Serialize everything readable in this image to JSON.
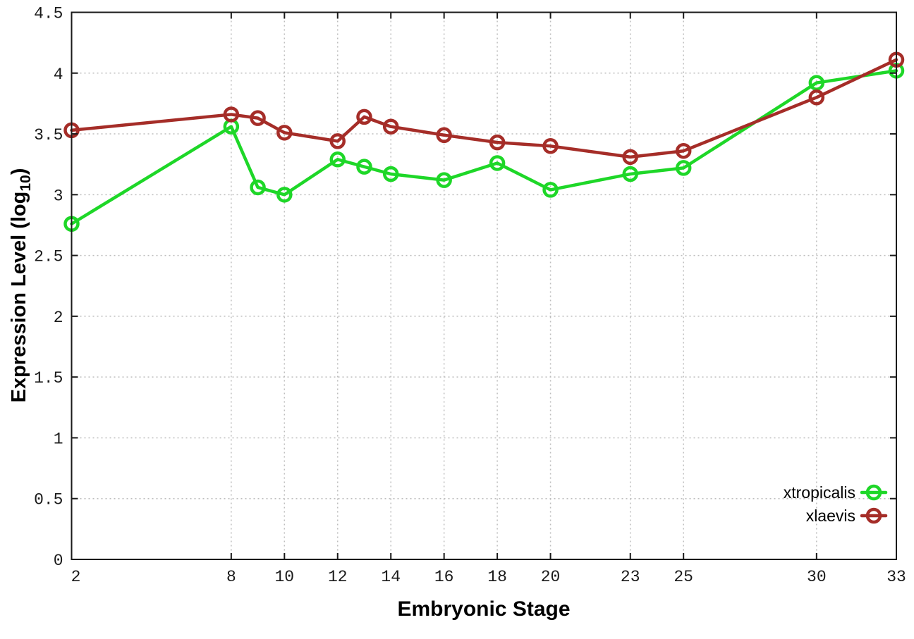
{
  "chart_data": {
    "type": "line",
    "title": "",
    "xlabel": "Embryonic Stage",
    "ylabel": "Expression Level (log10)",
    "ylabel_parts": {
      "main": "Expression Level (log",
      "sub": "10",
      "end": ")"
    },
    "x": [
      2,
      8,
      9,
      10,
      12,
      13,
      14,
      16,
      18,
      20,
      23,
      25,
      30,
      33
    ],
    "series": [
      {
        "name": "xtropicalis",
        "color": "#1ed728",
        "values": [
          2.76,
          3.56,
          3.06,
          3.0,
          3.29,
          3.23,
          3.17,
          3.12,
          3.26,
          3.04,
          3.17,
          3.22,
          3.92,
          4.02
        ]
      },
      {
        "name": "xlaevis",
        "color": "#a52d28",
        "values": [
          3.53,
          3.66,
          3.63,
          3.51,
          3.44,
          3.64,
          3.56,
          3.49,
          3.43,
          3.4,
          3.31,
          3.36,
          3.8,
          4.11
        ]
      }
    ],
    "xlim": [
      2,
      33
    ],
    "ylim": [
      0,
      4.5
    ],
    "xticks": [
      2,
      8,
      10,
      12,
      14,
      16,
      18,
      20,
      23,
      25,
      30,
      33
    ],
    "yticks": [
      0,
      0.5,
      1,
      1.5,
      2,
      2.5,
      3,
      3.5,
      4,
      4.5
    ],
    "grid": true,
    "legend_position": "inside-bottom-right",
    "marker": "open-circle"
  },
  "style": {
    "background": "#ffffff",
    "border_color": "#1a1a1a",
    "grid_color": "#bdbdbd",
    "tick_text_color": "#1a1a1a"
  }
}
